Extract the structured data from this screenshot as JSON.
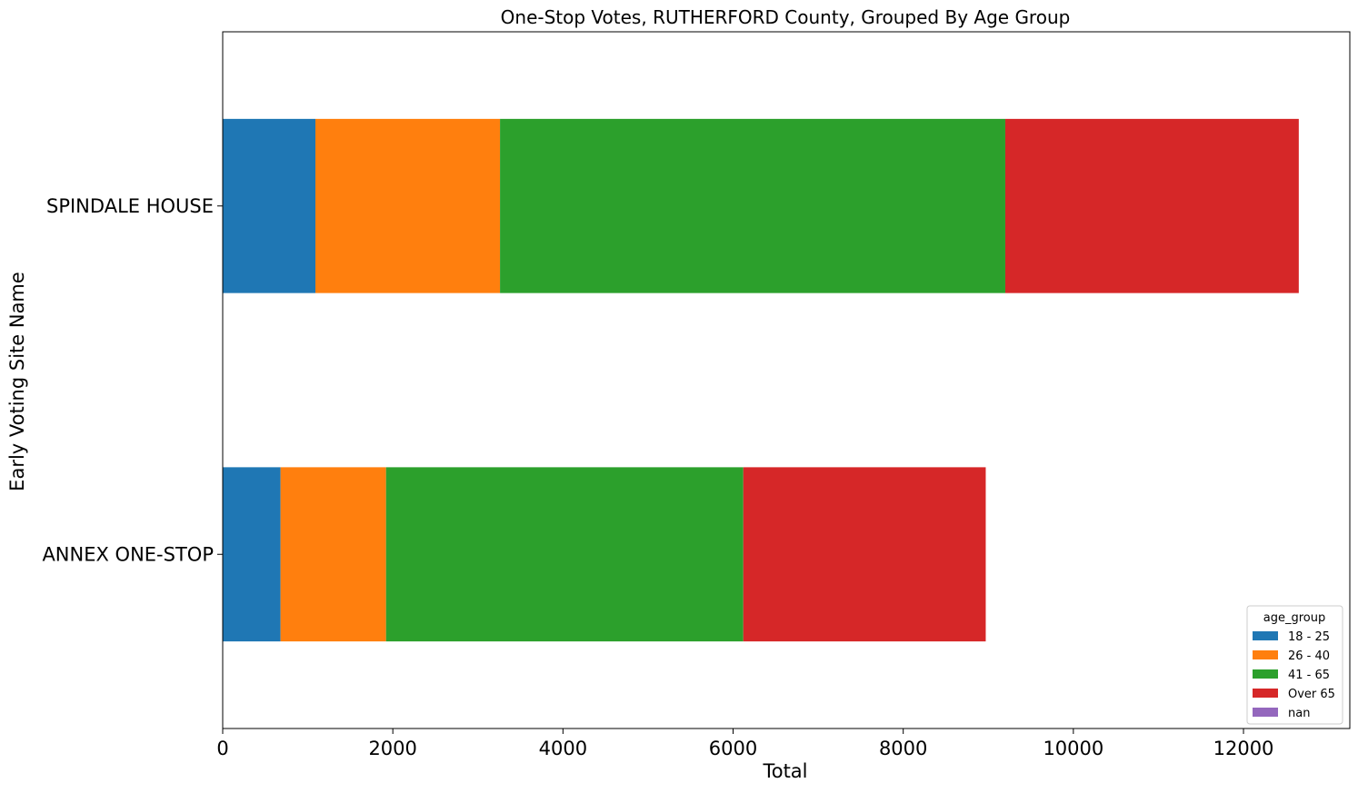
{
  "chart_data": {
    "type": "bar",
    "orientation": "horizontal",
    "stacked": true,
    "title": "One-Stop Votes, RUTHERFORD County, Grouped By Age Group",
    "xlabel": "Total",
    "ylabel": "Early Voting Site Name",
    "xlim": [
      0,
      13250
    ],
    "xticks": [
      0,
      2000,
      4000,
      6000,
      8000,
      10000,
      12000
    ],
    "categories": [
      "ANNEX ONE-STOP",
      "SPINDALE HOUSE"
    ],
    "series": [
      {
        "name": "18 - 25",
        "color": "#1f77b4",
        "values": [
          680,
          1090
        ]
      },
      {
        "name": "26 - 40",
        "color": "#ff7f0e",
        "values": [
          1240,
          2170
        ]
      },
      {
        "name": "41 - 65",
        "color": "#2ca02c",
        "values": [
          4200,
          5940
        ]
      },
      {
        "name": "Over 65",
        "color": "#d62728",
        "values": [
          2850,
          3450
        ]
      },
      {
        "name": "nan",
        "color": "#9467bd",
        "values": [
          0,
          0
        ]
      }
    ],
    "legend": {
      "title": "age_group",
      "position": "lower-right"
    },
    "grid": false
  }
}
